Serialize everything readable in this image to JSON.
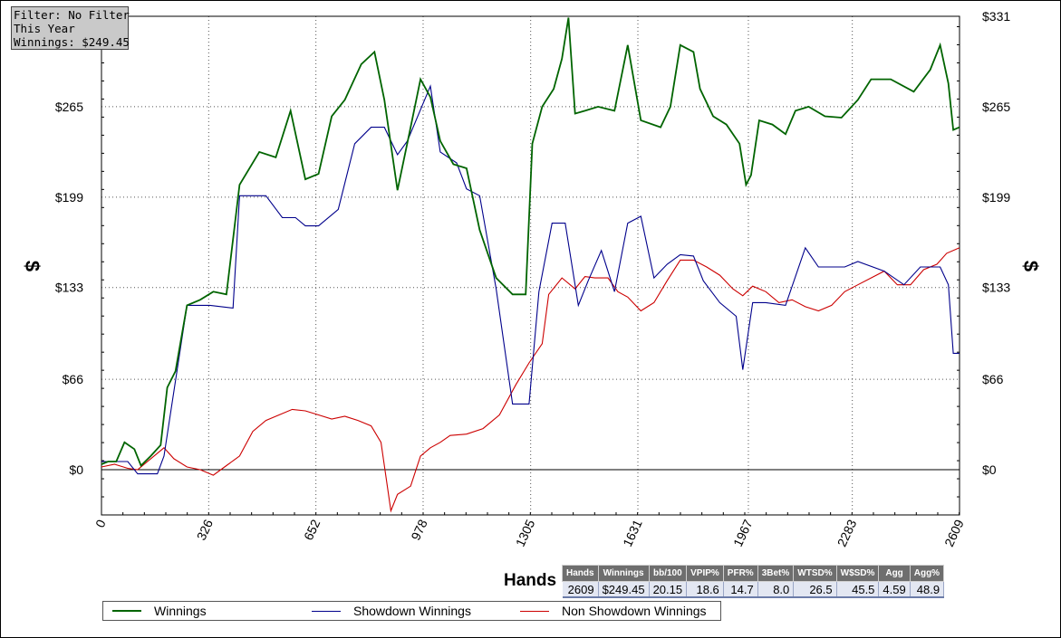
{
  "filter_panel": {
    "line1": "Filter: No Filter",
    "line2": "This Year",
    "line3": "Winnings: $249.45"
  },
  "chart_data": {
    "type": "line",
    "xlabel": "Hands",
    "ylabel": "$",
    "xlim": [
      0,
      2609
    ],
    "ylim": [
      -33,
      331
    ],
    "x_ticks": [
      "0",
      "326",
      "652",
      "978",
      "1305",
      "1631",
      "1967",
      "2283",
      "2609"
    ],
    "x_tick_values": [
      0,
      326,
      652,
      978,
      1305,
      1631,
      1967,
      2283,
      2609
    ],
    "y_ticks": [
      "$0",
      "$66",
      "$133",
      "$199",
      "$265",
      "$331"
    ],
    "y_tick_values": [
      0,
      66,
      133,
      199,
      265,
      331
    ],
    "grid": true,
    "legend_position": "bottom",
    "colors": {
      "winnings": "#006400",
      "showdown": "#00008b",
      "non_showdown": "#cc0000"
    },
    "series": [
      {
        "name": "Winnings",
        "color": "#006400",
        "points": [
          [
            0,
            4
          ],
          [
            20,
            6
          ],
          [
            45,
            6
          ],
          [
            70,
            20
          ],
          [
            100,
            15
          ],
          [
            120,
            3
          ],
          [
            150,
            10
          ],
          [
            180,
            18
          ],
          [
            200,
            60
          ],
          [
            225,
            72
          ],
          [
            260,
            120
          ],
          [
            300,
            124
          ],
          [
            340,
            130
          ],
          [
            380,
            128
          ],
          [
            420,
            208
          ],
          [
            480,
            232
          ],
          [
            530,
            228
          ],
          [
            575,
            262
          ],
          [
            620,
            212
          ],
          [
            660,
            216
          ],
          [
            700,
            258
          ],
          [
            740,
            270
          ],
          [
            790,
            296
          ],
          [
            830,
            305
          ],
          [
            860,
            270
          ],
          [
            900,
            204
          ],
          [
            940,
            250
          ],
          [
            970,
            285
          ],
          [
            1000,
            272
          ],
          [
            1030,
            240
          ],
          [
            1070,
            223
          ],
          [
            1110,
            220
          ],
          [
            1150,
            175
          ],
          [
            1200,
            140
          ],
          [
            1250,
            128
          ],
          [
            1290,
            128
          ],
          [
            1310,
            238
          ],
          [
            1340,
            265
          ],
          [
            1375,
            278
          ],
          [
            1400,
            300
          ],
          [
            1420,
            330
          ],
          [
            1440,
            260
          ],
          [
            1470,
            262
          ],
          [
            1510,
            265
          ],
          [
            1560,
            262
          ],
          [
            1600,
            310
          ],
          [
            1640,
            255
          ],
          [
            1700,
            250
          ],
          [
            1730,
            265
          ],
          [
            1760,
            310
          ],
          [
            1800,
            305
          ],
          [
            1820,
            278
          ],
          [
            1860,
            258
          ],
          [
            1900,
            252
          ],
          [
            1940,
            238
          ],
          [
            1960,
            208
          ],
          [
            1975,
            215
          ],
          [
            2000,
            255
          ],
          [
            2040,
            252
          ],
          [
            2080,
            245
          ],
          [
            2110,
            262
          ],
          [
            2150,
            265
          ],
          [
            2200,
            258
          ],
          [
            2250,
            257
          ],
          [
            2300,
            270
          ],
          [
            2340,
            285
          ],
          [
            2400,
            285
          ],
          [
            2470,
            276
          ],
          [
            2520,
            292
          ],
          [
            2550,
            310
          ],
          [
            2575,
            282
          ],
          [
            2590,
            248
          ],
          [
            2609,
            250
          ]
        ]
      },
      {
        "name": "Showdown Winnings",
        "color": "#00008b",
        "points": [
          [
            0,
            6
          ],
          [
            80,
            6
          ],
          [
            110,
            -3
          ],
          [
            170,
            -3
          ],
          [
            190,
            10
          ],
          [
            260,
            120
          ],
          [
            330,
            120
          ],
          [
            400,
            118
          ],
          [
            420,
            200
          ],
          [
            500,
            200
          ],
          [
            550,
            184
          ],
          [
            590,
            184
          ],
          [
            620,
            178
          ],
          [
            660,
            178
          ],
          [
            720,
            190
          ],
          [
            770,
            238
          ],
          [
            820,
            250
          ],
          [
            860,
            250
          ],
          [
            900,
            230
          ],
          [
            930,
            240
          ],
          [
            1000,
            280
          ],
          [
            1030,
            232
          ],
          [
            1080,
            224
          ],
          [
            1110,
            205
          ],
          [
            1150,
            200
          ],
          [
            1200,
            132
          ],
          [
            1250,
            48
          ],
          [
            1300,
            48
          ],
          [
            1330,
            130
          ],
          [
            1370,
            180
          ],
          [
            1410,
            180
          ],
          [
            1450,
            120
          ],
          [
            1480,
            138
          ],
          [
            1520,
            160
          ],
          [
            1560,
            130
          ],
          [
            1600,
            180
          ],
          [
            1640,
            185
          ],
          [
            1680,
            140
          ],
          [
            1720,
            150
          ],
          [
            1760,
            157
          ],
          [
            1800,
            156
          ],
          [
            1830,
            138
          ],
          [
            1880,
            122
          ],
          [
            1930,
            112
          ],
          [
            1950,
            73
          ],
          [
            1980,
            122
          ],
          [
            2020,
            122
          ],
          [
            2080,
            120
          ],
          [
            2140,
            162
          ],
          [
            2180,
            148
          ],
          [
            2260,
            148
          ],
          [
            2300,
            152
          ],
          [
            2380,
            145
          ],
          [
            2440,
            135
          ],
          [
            2490,
            148
          ],
          [
            2550,
            148
          ],
          [
            2575,
            135
          ],
          [
            2590,
            85
          ],
          [
            2609,
            85
          ]
        ]
      },
      {
        "name": "Non Showdown Winnings",
        "color": "#cc0000",
        "points": [
          [
            0,
            2
          ],
          [
            40,
            4
          ],
          [
            80,
            1
          ],
          [
            110,
            0
          ],
          [
            150,
            8
          ],
          [
            190,
            16
          ],
          [
            220,
            8
          ],
          [
            260,
            2
          ],
          [
            300,
            0
          ],
          [
            340,
            -4
          ],
          [
            380,
            3
          ],
          [
            420,
            10
          ],
          [
            460,
            28
          ],
          [
            500,
            36
          ],
          [
            540,
            40
          ],
          [
            580,
            44
          ],
          [
            620,
            43
          ],
          [
            660,
            40
          ],
          [
            700,
            37
          ],
          [
            740,
            39
          ],
          [
            780,
            36
          ],
          [
            820,
            32
          ],
          [
            850,
            20
          ],
          [
            880,
            -30
          ],
          [
            900,
            -18
          ],
          [
            940,
            -12
          ],
          [
            970,
            10
          ],
          [
            1000,
            16
          ],
          [
            1030,
            20
          ],
          [
            1060,
            25
          ],
          [
            1110,
            26
          ],
          [
            1160,
            30
          ],
          [
            1210,
            40
          ],
          [
            1260,
            62
          ],
          [
            1300,
            78
          ],
          [
            1340,
            92
          ],
          [
            1360,
            128
          ],
          [
            1400,
            140
          ],
          [
            1440,
            132
          ],
          [
            1470,
            141
          ],
          [
            1500,
            140
          ],
          [
            1540,
            140
          ],
          [
            1570,
            130
          ],
          [
            1600,
            126
          ],
          [
            1640,
            116
          ],
          [
            1680,
            122
          ],
          [
            1720,
            138
          ],
          [
            1760,
            153
          ],
          [
            1800,
            153
          ],
          [
            1840,
            148
          ],
          [
            1880,
            142
          ],
          [
            1920,
            132
          ],
          [
            1950,
            127
          ],
          [
            1980,
            134
          ],
          [
            2020,
            130
          ],
          [
            2060,
            122
          ],
          [
            2100,
            124
          ],
          [
            2140,
            119
          ],
          [
            2180,
            116
          ],
          [
            2220,
            120
          ],
          [
            2260,
            130
          ],
          [
            2300,
            135
          ],
          [
            2340,
            140
          ],
          [
            2380,
            145
          ],
          [
            2420,
            135
          ],
          [
            2460,
            135
          ],
          [
            2500,
            146
          ],
          [
            2540,
            150
          ],
          [
            2570,
            158
          ],
          [
            2609,
            162
          ]
        ]
      }
    ]
  },
  "stats": {
    "headers": [
      "Hands",
      "Winnings",
      "bb/100",
      "VPIP%",
      "PFR%",
      "3Bet%",
      "WTSD%",
      "W$SD%",
      "Agg",
      "Agg%"
    ],
    "values": [
      "2609",
      "$249.45",
      "20.15",
      "18.6",
      "14.7",
      "8.0",
      "26.5",
      "45.5",
      "4.59",
      "48.9"
    ]
  }
}
